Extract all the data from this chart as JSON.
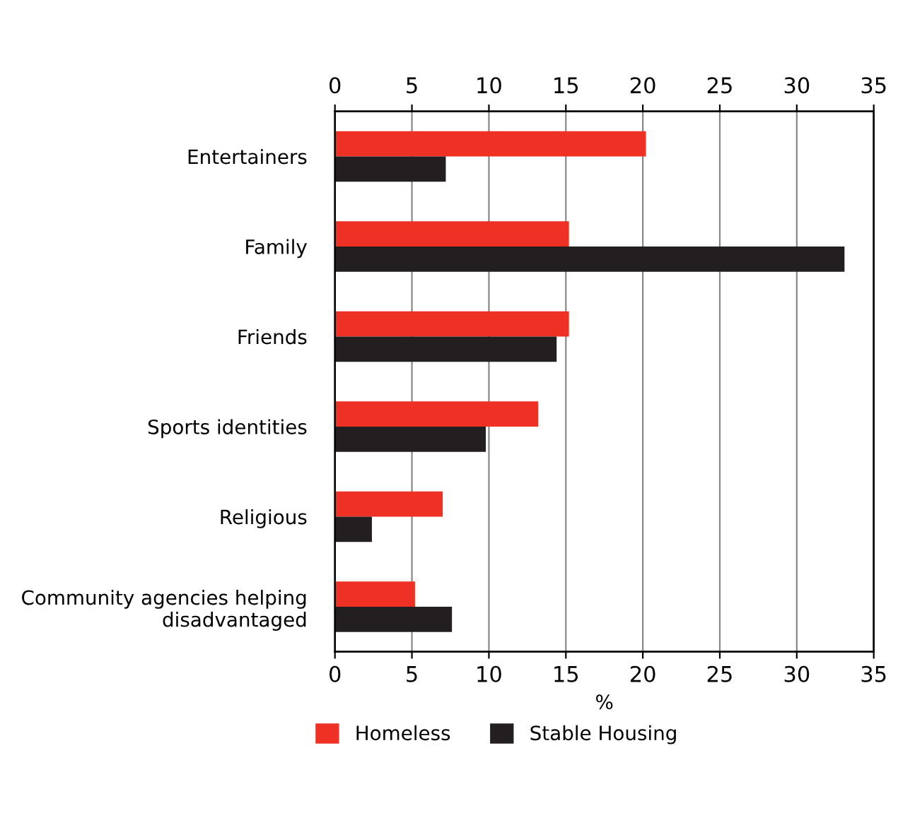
{
  "chart_data": {
    "type": "bar",
    "orientation": "horizontal",
    "xlabel": "%",
    "categories": [
      "Entertainers",
      "Family",
      "Friends",
      "Sports identities",
      "Religious",
      "Community agencies helping\ndisadvantaged"
    ],
    "series": [
      {
        "name": "Homeless",
        "color": "#ee3124",
        "values": [
          20.2,
          15.2,
          15.2,
          13.2,
          7.0,
          5.2
        ]
      },
      {
        "name": "Stable Housing",
        "color": "#231f20",
        "values": [
          7.2,
          33.1,
          14.4,
          9.8,
          2.4,
          7.6
        ]
      }
    ],
    "xlim": [
      0,
      35
    ],
    "xticks": [
      0,
      5,
      10,
      15,
      20,
      25,
      30,
      35
    ],
    "x2lim": [
      0,
      35
    ],
    "x2ticks": [
      0,
      5,
      10,
      15,
      20,
      25,
      30,
      35
    ],
    "grid": "x",
    "legend": "bottom"
  }
}
